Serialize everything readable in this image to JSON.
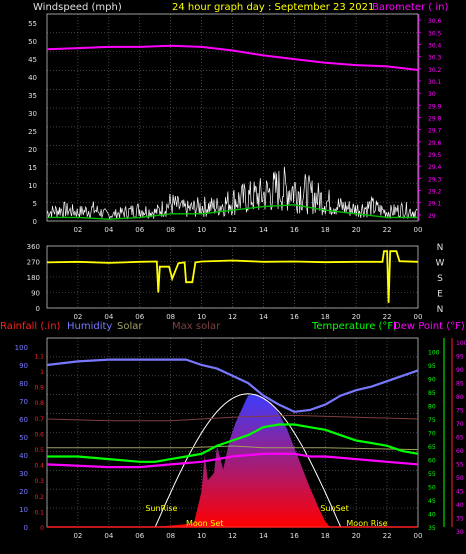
{
  "colors": {
    "background": "#000000",
    "grid": "#6a6a6a",
    "axis_text": "#e0e0e0",
    "title": "#ffff00",
    "wind": "#ffffff",
    "wind_avg": "#00c000",
    "barometer": "#ff00ff",
    "direction": "#ffff00",
    "rainfall": "#ff2020",
    "humidity": "#7878ff",
    "solar": "#a0a060",
    "max_solar": "#804040",
    "temperature": "#00ff00",
    "dew_point": "#ff00ff",
    "fill_top": "#3c3cff",
    "fill_bottom": "#ff0000"
  },
  "chart_data": [
    {
      "type": "line",
      "name": "wind-barometer",
      "title": "24 hour graph day : September 23 2021",
      "left_axis_label": "Windspeed (mph)",
      "right_axis_label": "Barometer ( in)",
      "x_ticks": [
        "02",
        "04",
        "06",
        "08",
        "10",
        "12",
        "14",
        "16",
        "18",
        "20",
        "22",
        "00"
      ],
      "left_ticks": [
        "0",
        "5",
        "10",
        "15",
        "20",
        "25",
        "30",
        "35",
        "40",
        "45",
        "50",
        "55"
      ],
      "right_ticks": [
        "29",
        "29.1",
        "29.2",
        "29.3",
        "29.4",
        "29.5",
        "29.6",
        "29.7",
        "29.8",
        "29.9",
        "30",
        "30.1",
        "30.2",
        "30.3",
        "30.4",
        "30.5",
        "30.6"
      ],
      "xlim": [
        0,
        24
      ],
      "left_ylim": [
        0,
        57.5
      ],
      "right_ylim": [
        28.95,
        30.65
      ],
      "series": [
        {
          "name": "Barometer",
          "values": [
            [
              0,
              30.36
            ],
            [
              2,
              30.37
            ],
            [
              4,
              30.38
            ],
            [
              6,
              30.38
            ],
            [
              8,
              30.39
            ],
            [
              10,
              30.38
            ],
            [
              12,
              30.35
            ],
            [
              14,
              30.31
            ],
            [
              16,
              30.28
            ],
            [
              18,
              30.25
            ],
            [
              20,
              30.23
            ],
            [
              22,
              30.22
            ],
            [
              24,
              30.19
            ]
          ]
        },
        {
          "name": "Windspeed",
          "values": [
            [
              0,
              3
            ],
            [
              1,
              4
            ],
            [
              2,
              3
            ],
            [
              3,
              4
            ],
            [
              4,
              2
            ],
            [
              5,
              3
            ],
            [
              6,
              4
            ],
            [
              7,
              3
            ],
            [
              8,
              6
            ],
            [
              9,
              4
            ],
            [
              10,
              5
            ],
            [
              11,
              5
            ],
            [
              12,
              7
            ],
            [
              13,
              8
            ],
            [
              14,
              9
            ],
            [
              15,
              11
            ],
            [
              16,
              11
            ],
            [
              17,
              9
            ],
            [
              18,
              7
            ],
            [
              19,
              5
            ],
            [
              20,
              4
            ],
            [
              21,
              5
            ],
            [
              22,
              3
            ],
            [
              23,
              4
            ],
            [
              24,
              3
            ]
          ]
        },
        {
          "name": "Wind average",
          "values": [
            [
              0,
              1
            ],
            [
              2,
              1
            ],
            [
              4,
              0.5
            ],
            [
              6,
              1
            ],
            [
              8,
              2
            ],
            [
              10,
              2
            ],
            [
              12,
              3
            ],
            [
              14,
              4
            ],
            [
              16,
              4.5
            ],
            [
              18,
              3
            ],
            [
              20,
              2
            ],
            [
              22,
              1
            ],
            [
              24,
              1
            ]
          ]
        }
      ]
    },
    {
      "type": "line",
      "name": "wind-direction",
      "x_ticks": [
        "02",
        "04",
        "06",
        "08",
        "10",
        "12",
        "14",
        "16",
        "18",
        "20",
        "22",
        "00"
      ],
      "left_ticks": [
        "0",
        "90",
        "180",
        "270",
        "360"
      ],
      "right_labels": [
        "N",
        "W",
        "S",
        "E",
        "N"
      ],
      "xlim": [
        0,
        24
      ],
      "ylim": [
        0,
        360
      ],
      "series": [
        {
          "name": "Wind direction",
          "values": [
            [
              0,
              265
            ],
            [
              2,
              268
            ],
            [
              4,
              262
            ],
            [
              6,
              268
            ],
            [
              7.1,
              270
            ],
            [
              7.2,
              90
            ],
            [
              7.3,
              240
            ],
            [
              7.9,
              240
            ],
            [
              8.1,
              170
            ],
            [
              8.5,
              260
            ],
            [
              8.9,
              265
            ],
            [
              9.0,
              150
            ],
            [
              9.4,
              150
            ],
            [
              9.6,
              265
            ],
            [
              10,
              270
            ],
            [
              12,
              276
            ],
            [
              14,
              268
            ],
            [
              16,
              270
            ],
            [
              18,
              266
            ],
            [
              20,
              268
            ],
            [
              21.7,
              268
            ],
            [
              21.8,
              330
            ],
            [
              22.0,
              330
            ],
            [
              22.1,
              30
            ],
            [
              22.2,
              330
            ],
            [
              22.6,
              330
            ],
            [
              22.8,
              272
            ],
            [
              24,
              268
            ]
          ]
        }
      ]
    },
    {
      "type": "area",
      "name": "climate",
      "labels": {
        "rainfall": "Rainfall (.in)",
        "humidity": "Humidity",
        "solar": "Solar",
        "max_solar": "Max solar",
        "temperature": "Temperature (°F)",
        "dew_point": "Dew Point (°F)"
      },
      "x_ticks": [
        "02",
        "04",
        "06",
        "08",
        "10",
        "12",
        "14",
        "16",
        "18",
        "20",
        "22",
        "00"
      ],
      "left_ticks": [
        "0",
        "10",
        "20",
        "30",
        "40",
        "50",
        "60",
        "70",
        "80",
        "90",
        "100"
      ],
      "rain_ticks": [
        "0",
        "0.1",
        "0.2",
        "0.3",
        "0.4",
        "0.5",
        "0.6",
        "0.7",
        "0.8",
        "0.9",
        "1",
        "1.1"
      ],
      "temp_ticks": [
        "35",
        "40",
        "45",
        "50",
        "55",
        "60",
        "65",
        "70",
        "75",
        "80",
        "85",
        "90",
        "95",
        "100"
      ],
      "right_ticks": [
        "30",
        "35",
        "40",
        "45",
        "50",
        "55",
        "60",
        "65",
        "70",
        "75",
        "80",
        "85",
        "90",
        "95",
        "100"
      ],
      "annotations": [
        "SunRise",
        "Moon Set",
        "SunSet",
        "Moon Rise"
      ],
      "xlim": [
        0,
        24
      ],
      "left_ylim": [
        0,
        105
      ],
      "right_ylim": [
        30.5,
        101.5
      ],
      "series": [
        {
          "name": "Humidity",
          "axis": "left",
          "values": [
            [
              0,
              90
            ],
            [
              2,
              92
            ],
            [
              4,
              93
            ],
            [
              6,
              93
            ],
            [
              8,
              93
            ],
            [
              9,
              93
            ],
            [
              10,
              90
            ],
            [
              11,
              88
            ],
            [
              12,
              84
            ],
            [
              13,
              80
            ],
            [
              14,
              73
            ],
            [
              15,
              68
            ],
            [
              16,
              64
            ],
            [
              17,
              65
            ],
            [
              18,
              68
            ],
            [
              19,
              73
            ],
            [
              20,
              76
            ],
            [
              21,
              78
            ],
            [
              22,
              81
            ],
            [
              23,
              84
            ],
            [
              24,
              87
            ]
          ]
        },
        {
          "name": "Solar",
          "axis": "left",
          "values": [
            [
              0,
              44
            ],
            [
              6,
              44
            ],
            [
              9,
              44
            ],
            [
              12,
              45
            ],
            [
              14,
              44
            ],
            [
              18,
              44
            ],
            [
              24,
              43
            ]
          ]
        },
        {
          "name": "Max solar",
          "axis": "left",
          "values": [
            [
              0,
              60
            ],
            [
              4,
              59
            ],
            [
              8,
              59
            ],
            [
              12,
              61
            ],
            [
              16,
              62
            ],
            [
              20,
              61
            ],
            [
              24,
              60
            ]
          ]
        },
        {
          "name": "Temperature",
          "axis": "right",
          "values": [
            [
              0,
              57
            ],
            [
              2,
              57
            ],
            [
              4,
              56
            ],
            [
              6,
              55
            ],
            [
              7,
              55
            ],
            [
              8,
              56
            ],
            [
              9,
              57
            ],
            [
              10,
              58
            ],
            [
              11,
              61
            ],
            [
              12,
              63
            ],
            [
              13,
              65
            ],
            [
              14,
              68
            ],
            [
              15,
              69
            ],
            [
              16,
              69
            ],
            [
              17,
              68
            ],
            [
              18,
              67
            ],
            [
              19,
              65
            ],
            [
              20,
              63
            ],
            [
              21,
              62
            ],
            [
              22,
              61
            ],
            [
              23,
              59
            ],
            [
              24,
              58
            ]
          ]
        },
        {
          "name": "Dew Point",
          "axis": "right",
          "values": [
            [
              0,
              54
            ],
            [
              4,
              53
            ],
            [
              6,
              53
            ],
            [
              8,
              54
            ],
            [
              10,
              55
            ],
            [
              12,
              57
            ],
            [
              14,
              58
            ],
            [
              15,
              58
            ],
            [
              16,
              58
            ],
            [
              17,
              57
            ],
            [
              18,
              57
            ],
            [
              20,
              56
            ],
            [
              22,
              55
            ],
            [
              24,
              54
            ]
          ]
        },
        {
          "name": "Solar radiation",
          "axis": "left",
          "values": [
            [
              7,
              0
            ],
            [
              9.5,
              2
            ],
            [
              10,
              20
            ],
            [
              10.2,
              40
            ],
            [
              10.4,
              26
            ],
            [
              10.8,
              30
            ],
            [
              11,
              45
            ],
            [
              11.4,
              32
            ],
            [
              11.8,
              48
            ],
            [
              12.2,
              58
            ],
            [
              13,
              73
            ],
            [
              13.5,
              74
            ],
            [
              14,
              72
            ],
            [
              14.5,
              69
            ],
            [
              15,
              63
            ],
            [
              15.5,
              55
            ],
            [
              16,
              44
            ],
            [
              16.5,
              33
            ],
            [
              17,
              22
            ],
            [
              17.5,
              12
            ],
            [
              18,
              3
            ],
            [
              18.3,
              0
            ]
          ]
        },
        {
          "name": "Rainfall",
          "axis": "left",
          "values": [
            [
              0,
              0
            ],
            [
              24,
              0
            ]
          ]
        }
      ]
    }
  ]
}
